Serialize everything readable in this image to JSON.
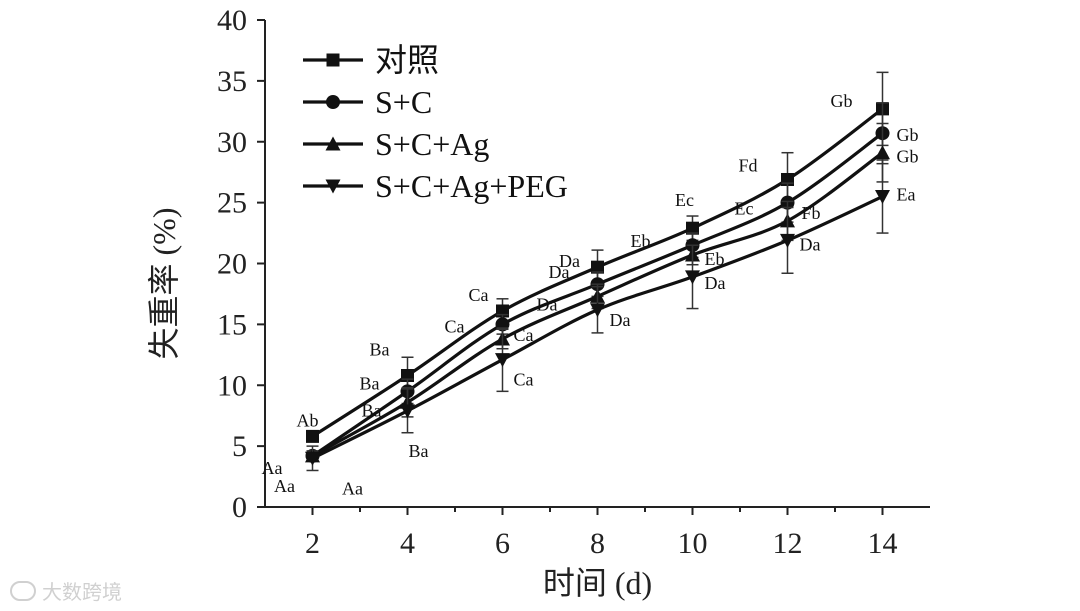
{
  "chart_data": {
    "type": "line",
    "title": "",
    "xlabel": "时间 (d)",
    "ylabel": "失重率 (%)",
    "x": [
      2,
      4,
      6,
      8,
      10,
      12,
      14
    ],
    "xlim": [
      1,
      15
    ],
    "ylim": [
      0,
      40
    ],
    "xticks": [
      2,
      4,
      6,
      8,
      10,
      12,
      14
    ],
    "yticks": [
      0,
      5,
      10,
      15,
      20,
      25,
      30,
      35,
      40
    ],
    "grid": false,
    "legend_position": "top-left",
    "series": [
      {
        "name": "对照",
        "marker": "square",
        "values": [
          5.8,
          10.8,
          16.1,
          19.7,
          22.9,
          26.9,
          32.7
        ],
        "errors": [
          0.4,
          1.5,
          1.0,
          1.4,
          1.0,
          2.2,
          3.0
        ],
        "labels": [
          "Ab",
          "Ba",
          "Ca",
          "Da",
          "Ec",
          "Fd",
          "Gb"
        ]
      },
      {
        "name": "S+C",
        "marker": "circle",
        "values": [
          4.2,
          9.5,
          15.0,
          18.3,
          21.5,
          25.0,
          30.7
        ],
        "errors": [
          0.4,
          1.0,
          0.8,
          1.0,
          1.0,
          1.6,
          2.5
        ],
        "labels": [
          "Aa",
          "Ba",
          "Ca",
          "Da",
          "Eb",
          "Ec",
          "Gb"
        ]
      },
      {
        "name": "S+C+Ag",
        "marker": "triangle-up",
        "values": [
          4.2,
          8.6,
          13.8,
          17.3,
          20.7,
          23.5,
          29.1
        ],
        "errors": [
          0.4,
          1.2,
          0.8,
          1.0,
          0.8,
          1.6,
          2.4
        ],
        "labels": [
          "Aa",
          "Ba",
          "Ca",
          "Da",
          "Eb",
          "Fb",
          "Gb"
        ]
      },
      {
        "name": "S+C+Ag+PEG",
        "marker": "triangle-down",
        "values": [
          4.0,
          7.9,
          12.1,
          16.2,
          18.9,
          21.9,
          25.5
        ],
        "errors": [
          1.0,
          1.8,
          2.6,
          1.9,
          2.6,
          2.7,
          3.0
        ],
        "labels": [
          "Aa",
          "Ba",
          "Ca",
          "Da",
          "Da",
          "Da",
          "Ea"
        ]
      }
    ]
  },
  "watermark": {
    "text": "大数跨境",
    "icon": "logo-icon"
  }
}
